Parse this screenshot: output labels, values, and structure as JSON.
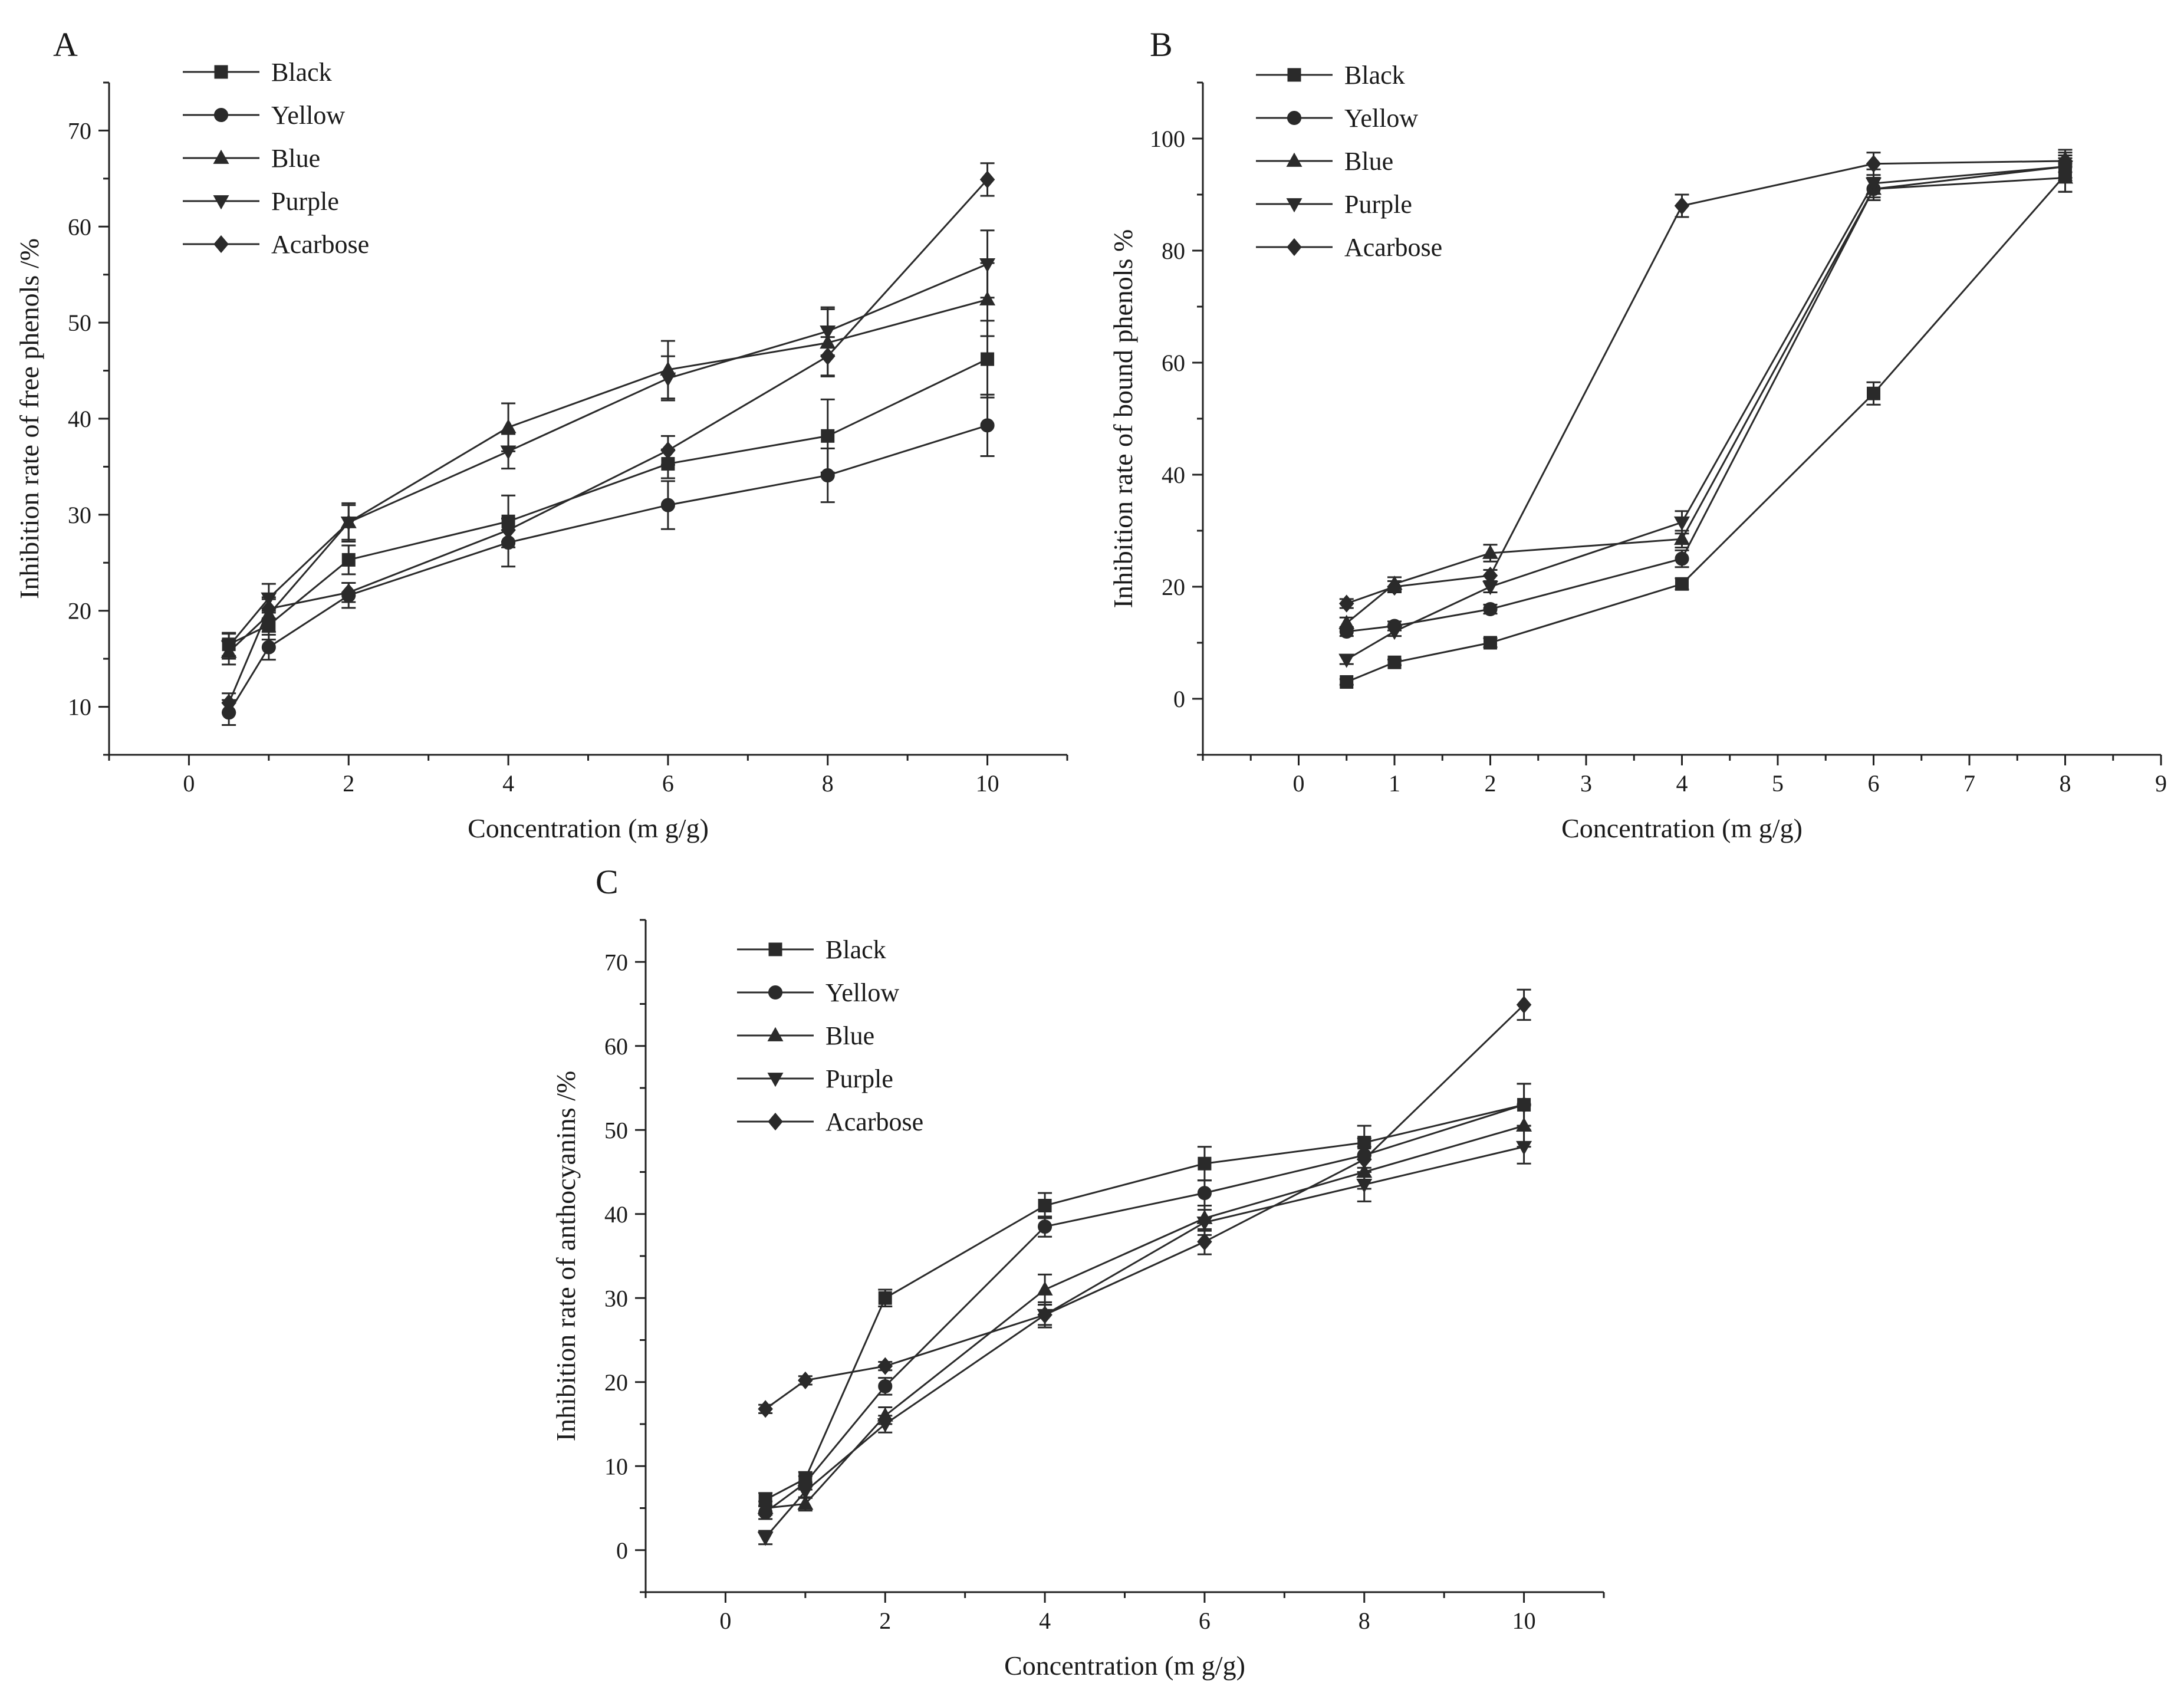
{
  "chart_data": [
    {
      "type": "line",
      "panel": "A",
      "xlabel": "Concentration (m g/g)",
      "ylabel": "Inhibition rate of free phenols /%",
      "xlim": [
        -1,
        11
      ],
      "ylim": [
        5,
        75
      ],
      "xticks": [
        0,
        2,
        4,
        6,
        8,
        10
      ],
      "yticks": [
        10,
        20,
        30,
        40,
        50,
        60,
        70
      ],
      "legend_position": "top-left",
      "x": [
        0.5,
        1,
        2,
        4,
        6,
        8,
        10
      ],
      "series": [
        {
          "name": "Black",
          "marker": "square",
          "values": [
            16.5,
            18.5,
            25.3,
            29.3,
            35.3,
            38.2,
            46.2
          ],
          "errors": [
            1.2,
            1.5,
            1.5,
            2.7,
            1.5,
            3.8,
            4.0
          ]
        },
        {
          "name": "Yellow",
          "marker": "circle",
          "values": [
            9.4,
            16.2,
            21.6,
            27.1,
            31.0,
            34.1,
            39.3
          ],
          "errors": [
            1.3,
            1.3,
            1.3,
            2.5,
            2.5,
            2.8,
            3.2
          ]
        },
        {
          "name": "Blue",
          "marker": "triangle-up",
          "values": [
            15.7,
            19.6,
            29.2,
            39.1,
            45.1,
            47.9,
            52.4
          ],
          "errors": [
            1.3,
            1.8,
            1.8,
            2.5,
            3.0,
            3.5,
            3.8
          ]
        },
        {
          "name": "Purple",
          "marker": "triangle-down",
          "values": [
            16.3,
            21.3,
            29.2,
            36.6,
            44.2,
            49.1,
            56.1
          ],
          "errors": [
            1.3,
            1.5,
            2.0,
            1.8,
            2.3,
            2.5,
            3.5
          ]
        },
        {
          "name": "Acarbose",
          "marker": "diamond",
          "values": [
            10.4,
            20.2,
            21.9,
            28.4,
            36.7,
            46.5,
            64.9
          ],
          "errors": [
            1.0,
            1.0,
            1.0,
            1.2,
            1.5,
            2.0,
            1.7
          ]
        }
      ]
    },
    {
      "type": "line",
      "panel": "B",
      "xlabel": "Concentration (m g/g)",
      "ylabel": "Inhibition rate of bound phenols %",
      "xlim": [
        -1,
        9
      ],
      "ylim": [
        -10,
        110
      ],
      "xticks": [
        0,
        1,
        2,
        3,
        4,
        5,
        6,
        7,
        8,
        9
      ],
      "yticks": [
        0,
        20,
        40,
        60,
        80,
        100
      ],
      "legend_position": "top-left",
      "x": [
        0.5,
        1,
        2,
        4,
        6,
        8
      ],
      "series": [
        {
          "name": "Black",
          "marker": "square",
          "values": [
            3.0,
            6.5,
            10.0,
            20.5,
            54.5,
            93.5
          ],
          "errors": [
            0.5,
            0.5,
            0.8,
            1.0,
            2.0,
            3.0
          ]
        },
        {
          "name": "Yellow",
          "marker": "circle",
          "values": [
            12.0,
            13.0,
            16.0,
            25.0,
            91.0,
            95.0
          ],
          "errors": [
            0.8,
            0.8,
            0.8,
            1.5,
            2.0,
            2.0
          ]
        },
        {
          "name": "Blue",
          "marker": "triangle-up",
          "values": [
            13.5,
            20.5,
            26.0,
            28.5,
            91.0,
            93.0
          ],
          "errors": [
            1.0,
            1.2,
            1.5,
            1.5,
            2.0,
            2.5
          ]
        },
        {
          "name": "Purple",
          "marker": "triangle-down",
          "values": [
            7.0,
            12.0,
            20.0,
            31.5,
            92.0,
            95.0
          ],
          "errors": [
            0.8,
            0.8,
            1.0,
            2.0,
            2.5,
            2.5
          ]
        },
        {
          "name": "Acarbose",
          "marker": "diamond",
          "values": [
            17.0,
            20.0,
            22.0,
            88.0,
            95.5,
            96.0
          ],
          "errors": [
            0.8,
            1.0,
            1.0,
            2.0,
            2.0,
            2.0
          ]
        }
      ]
    },
    {
      "type": "line",
      "panel": "C",
      "xlabel": "Concentration (m g/g)",
      "ylabel": "Inhibition rate of anthocyanins /%",
      "xlim": [
        -1,
        11
      ],
      "ylim": [
        -5,
        75
      ],
      "xticks": [
        0,
        2,
        4,
        6,
        8,
        10
      ],
      "yticks": [
        0,
        10,
        20,
        30,
        40,
        50,
        60,
        70
      ],
      "legend_position": "top-left",
      "x": [
        0.5,
        1,
        2,
        4,
        6,
        8,
        10
      ],
      "series": [
        {
          "name": "Black",
          "marker": "square",
          "values": [
            6.0,
            8.5,
            30.0,
            41.0,
            46.0,
            48.5,
            53.0
          ],
          "errors": [
            0.8,
            0.8,
            1.0,
            1.5,
            2.0,
            2.0,
            2.5
          ]
        },
        {
          "name": "Yellow",
          "marker": "circle",
          "values": [
            4.5,
            8.0,
            19.5,
            38.5,
            42.5,
            47.0,
            53.0
          ],
          "errors": [
            0.8,
            0.8,
            1.0,
            1.2,
            1.5,
            2.0,
            2.5
          ]
        },
        {
          "name": "Blue",
          "marker": "triangle-up",
          "values": [
            5.0,
            5.5,
            16.0,
            31.0,
            39.5,
            45.0,
            50.5
          ],
          "errors": [
            0.8,
            0.8,
            1.0,
            1.8,
            1.5,
            2.0,
            2.5
          ]
        },
        {
          "name": "Purple",
          "marker": "triangle-down",
          "values": [
            1.5,
            7.0,
            15.0,
            28.0,
            39.0,
            43.5,
            48.0
          ],
          "errors": [
            0.8,
            0.8,
            1.0,
            1.5,
            1.5,
            2.0,
            2.0
          ]
        },
        {
          "name": "Acarbose",
          "marker": "diamond",
          "values": [
            16.8,
            20.2,
            21.9,
            28.0,
            36.7,
            46.5,
            64.9
          ],
          "errors": [
            0.5,
            0.5,
            0.5,
            1.2,
            1.5,
            1.5,
            1.8
          ]
        }
      ]
    }
  ]
}
